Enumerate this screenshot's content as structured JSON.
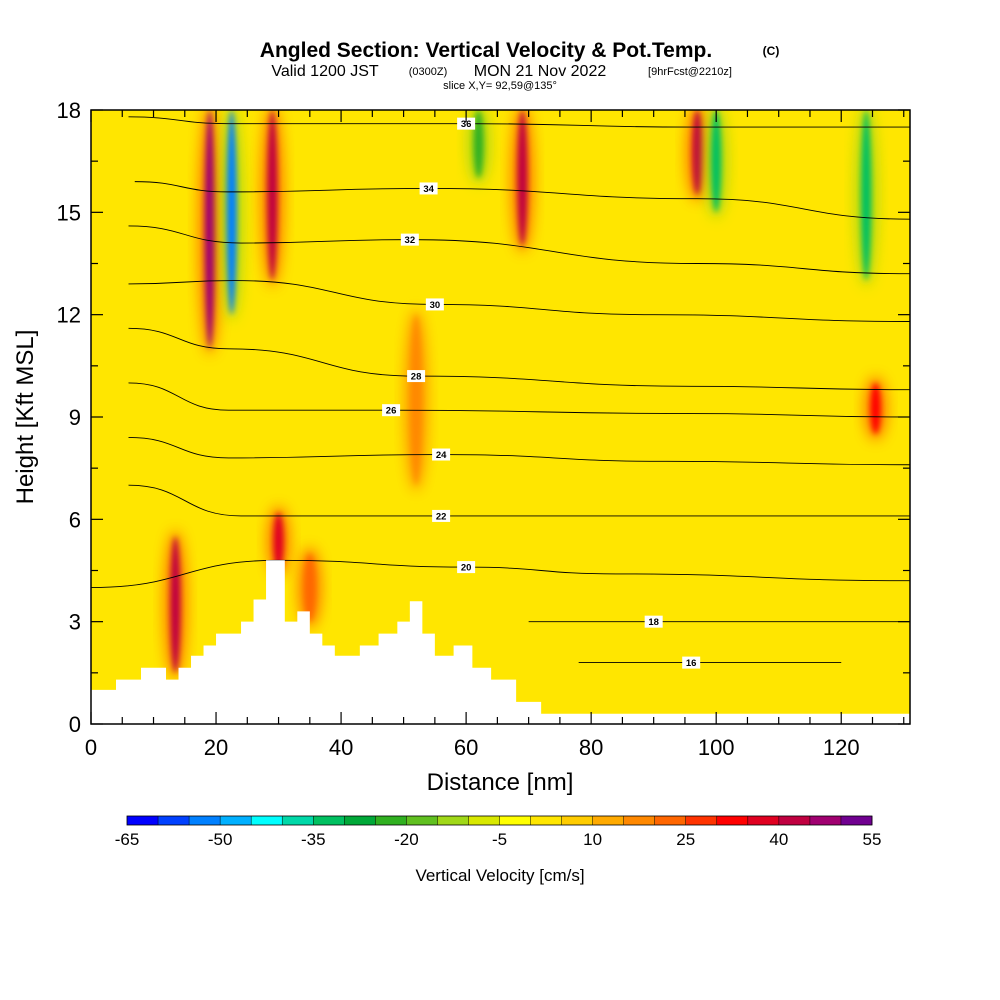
{
  "chart_data": {
    "type": "heatmap",
    "title": "Angled Section: Vertical Velocity & Pot.Temp.",
    "title_unit": "(C)",
    "subtitle_a": "Valid 1200 JST",
    "subtitle_b": "(0300Z)",
    "subtitle_c": "MON 21 Nov 2022",
    "subtitle_d": "[9hrFcst@2210z]",
    "slice_label": "slice X,Y= 92,59@135°",
    "xlabel": "Distance [nm]",
    "ylabel": "Height [Kft MSL]",
    "xlim": [
      0,
      131
    ],
    "ylim": [
      0,
      18
    ],
    "x_ticks": [
      0,
      20,
      40,
      60,
      80,
      100,
      120
    ],
    "y_ticks": [
      0,
      3,
      6,
      9,
      12,
      15,
      18
    ],
    "colorbar": {
      "title": "Vertical Velocity [cm/s]",
      "levels": [
        -65,
        -60,
        -55,
        -50,
        -45,
        -40,
        -35,
        -30,
        -25,
        -20,
        -15,
        -10,
        -5,
        0,
        5,
        10,
        15,
        20,
        25,
        30,
        35,
        40,
        45,
        50,
        55
      ],
      "tick_labels": [
        -65,
        -50,
        -35,
        -20,
        -5,
        10,
        25,
        40,
        55
      ],
      "colors": [
        "#0000ff",
        "#0040ff",
        "#0080ff",
        "#00b0ff",
        "#00ffff",
        "#00d8a8",
        "#00c060",
        "#00a838",
        "#30b020",
        "#60c020",
        "#a0d818",
        "#d8e800",
        "#ffff00",
        "#ffe600",
        "#ffcc00",
        "#ffaa00",
        "#ff8800",
        "#ff6600",
        "#ff3300",
        "#ff0000",
        "#e00020",
        "#c00040",
        "#a00070",
        "#700090"
      ]
    },
    "vertical_velocity_features": [
      {
        "x": 13.5,
        "zmin": 1.5,
        "zmax": 5.5,
        "value": 40
      },
      {
        "x": 19,
        "zmin": 11,
        "zmax": 18,
        "value": 45
      },
      {
        "x": 22.5,
        "zmin": 12,
        "zmax": 18,
        "value": -55
      },
      {
        "x": 29,
        "zmin": 13,
        "zmax": 18,
        "value": 40
      },
      {
        "x": 30,
        "zmin": 4.5,
        "zmax": 6.2,
        "value": 35
      },
      {
        "x": 35,
        "zmin": 3,
        "zmax": 5,
        "value": 20
      },
      {
        "x": 52,
        "zmin": 7,
        "zmax": 12,
        "value": 15
      },
      {
        "x": 62,
        "zmin": 16,
        "zmax": 18,
        "value": -25
      },
      {
        "x": 69,
        "zmin": 14,
        "zmax": 18,
        "value": 40
      },
      {
        "x": 97,
        "zmin": 15.5,
        "zmax": 18,
        "value": 40
      },
      {
        "x": 100,
        "zmin": 15,
        "zmax": 18,
        "value": -35
      },
      {
        "x": 124,
        "zmin": 13,
        "zmax": 18,
        "value": -35
      },
      {
        "x": 125.5,
        "zmin": 8.5,
        "zmax": 10,
        "value": 30
      }
    ],
    "theta_contours": [
      {
        "label": "36",
        "points": [
          [
            6,
            17.8
          ],
          [
            22,
            17.6
          ],
          [
            60,
            17.6
          ],
          [
            96,
            17.5
          ],
          [
            131,
            17.5
          ]
        ]
      },
      {
        "label": "34",
        "points": [
          [
            7,
            15.9
          ],
          [
            22,
            15.6
          ],
          [
            54,
            15.7
          ],
          [
            97,
            15.4
          ],
          [
            131,
            14.8
          ]
        ]
      },
      {
        "label": "32",
        "points": [
          [
            6,
            14.6
          ],
          [
            24,
            14.1
          ],
          [
            51,
            14.2
          ],
          [
            97,
            13.5
          ],
          [
            131,
            13.2
          ]
        ]
      },
      {
        "label": "30",
        "points": [
          [
            6,
            12.9
          ],
          [
            23,
            13.0
          ],
          [
            55,
            12.3
          ],
          [
            90,
            12.0
          ],
          [
            131,
            11.8
          ]
        ]
      },
      {
        "label": "28",
        "points": [
          [
            6,
            11.6
          ],
          [
            22,
            11.0
          ],
          [
            52,
            10.2
          ],
          [
            96,
            9.9
          ],
          [
            131,
            9.8
          ]
        ]
      },
      {
        "label": "26",
        "points": [
          [
            6,
            10.0
          ],
          [
            22,
            9.2
          ],
          [
            48,
            9.2
          ],
          [
            96,
            9.1
          ],
          [
            131,
            9.0
          ]
        ]
      },
      {
        "label": "24",
        "points": [
          [
            6,
            8.4
          ],
          [
            22,
            7.8
          ],
          [
            56,
            7.9
          ],
          [
            92,
            7.7
          ],
          [
            131,
            7.6
          ]
        ]
      },
      {
        "label": "22",
        "points": [
          [
            6,
            7.0
          ],
          [
            24,
            6.1
          ],
          [
            56,
            6.1
          ],
          [
            92,
            6.1
          ],
          [
            131,
            6.1
          ]
        ]
      },
      {
        "label": "20",
        "points": [
          [
            0,
            4.0
          ],
          [
            30,
            4.8
          ],
          [
            60,
            4.6
          ],
          [
            84,
            4.4
          ],
          [
            131,
            4.2
          ]
        ]
      },
      {
        "label": "18",
        "points": [
          [
            70,
            3.0
          ],
          [
            90,
            3.0
          ],
          [
            131,
            3.0
          ]
        ]
      },
      {
        "label": "16",
        "points": [
          [
            78,
            1.8
          ],
          [
            96,
            1.8
          ],
          [
            120,
            1.8
          ]
        ]
      }
    ],
    "terrain": [
      [
        0,
        1.0
      ],
      [
        4,
        1.0
      ],
      [
        4,
        1.3
      ],
      [
        8,
        1.3
      ],
      [
        8,
        1.65
      ],
      [
        12,
        1.65
      ],
      [
        12,
        1.3
      ],
      [
        14,
        1.3
      ],
      [
        14,
        1.65
      ],
      [
        16,
        1.65
      ],
      [
        16,
        2.0
      ],
      [
        18,
        2.0
      ],
      [
        18,
        2.3
      ],
      [
        20,
        2.3
      ],
      [
        20,
        2.65
      ],
      [
        24,
        2.65
      ],
      [
        24,
        3.0
      ],
      [
        26,
        3.0
      ],
      [
        26,
        3.65
      ],
      [
        28,
        3.65
      ],
      [
        28,
        4.8
      ],
      [
        31,
        4.8
      ],
      [
        31,
        3.0
      ],
      [
        33,
        3.0
      ],
      [
        33,
        3.3
      ],
      [
        35,
        3.3
      ],
      [
        35,
        2.65
      ],
      [
        37,
        2.65
      ],
      [
        37,
        2.3
      ],
      [
        39,
        2.3
      ],
      [
        39,
        2.0
      ],
      [
        43,
        2.0
      ],
      [
        43,
        2.3
      ],
      [
        46,
        2.3
      ],
      [
        46,
        2.65
      ],
      [
        49,
        2.65
      ],
      [
        49,
        3.0
      ],
      [
        51,
        3.0
      ],
      [
        51,
        3.6
      ],
      [
        53,
        3.6
      ],
      [
        53,
        2.65
      ],
      [
        55,
        2.65
      ],
      [
        55,
        2.0
      ],
      [
        58,
        2.0
      ],
      [
        58,
        2.3
      ],
      [
        61,
        2.3
      ],
      [
        61,
        1.65
      ],
      [
        64,
        1.65
      ],
      [
        64,
        1.3
      ],
      [
        68,
        1.3
      ],
      [
        68,
        0.65
      ],
      [
        72,
        0.65
      ],
      [
        72,
        0.3
      ],
      [
        131,
        0.3
      ]
    ]
  }
}
